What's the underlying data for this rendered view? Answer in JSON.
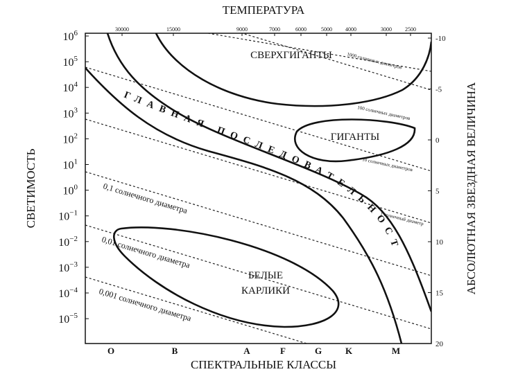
{
  "top_axis_label": "ТЕМПЕРАТУРА",
  "temperature_ticks": [
    "30000",
    "15000",
    "9000",
    "7000",
    "6000",
    "5000",
    "4000",
    "3000",
    "2500"
  ],
  "bottom_axis_label": "СПЕКТРАЛЬНЫЕ КЛАССЫ",
  "spectral_classes": [
    "O",
    "B",
    "A",
    "F",
    "G",
    "K",
    "M"
  ],
  "left_axis_label": "СВЕТИМОСТЬ",
  "luminosity_ticks": [
    {
      "base": "10",
      "exp": "6"
    },
    {
      "base": "10",
      "exp": "5"
    },
    {
      "base": "10",
      "exp": "4"
    },
    {
      "base": "10",
      "exp": "3"
    },
    {
      "base": "10",
      "exp": "2"
    },
    {
      "base": "10",
      "exp": "1"
    },
    {
      "base": "10",
      "exp": "0"
    },
    {
      "base": "10",
      "exp": "−1"
    },
    {
      "base": "10",
      "exp": "−2"
    },
    {
      "base": "10",
      "exp": "−3"
    },
    {
      "base": "10",
      "exp": "−4"
    },
    {
      "base": "10",
      "exp": "−5"
    }
  ],
  "right_axis_label": "АБСОЛЮТНАЯ ЗВЕЗДНАЯ ВЕЛИЧИНА",
  "magnitude_ticks": [
    "-10",
    "-5",
    "0",
    "5",
    "10",
    "15",
    "20"
  ],
  "regions": {
    "supergiants": "СВЕРХГИГАНТЫ",
    "giants": "ГИГАНТЫ",
    "main_sequence": "ГЛАВНАЯ ПОСЛЕДОВАТЕЛЬНОСТЬ",
    "white_dwarfs": [
      "БЕЛЫЕ",
      "КАРЛИКИ"
    ]
  },
  "diameters": [
    "1000 солнечных диаметров",
    "100 солнечных диаметров",
    "10 солнечных диаметров",
    "1 солнечный диаметр",
    "0,1 солнечного диаметра",
    "0,01 солнечного диаметра",
    "0,001 солнечного диаметра"
  ]
}
